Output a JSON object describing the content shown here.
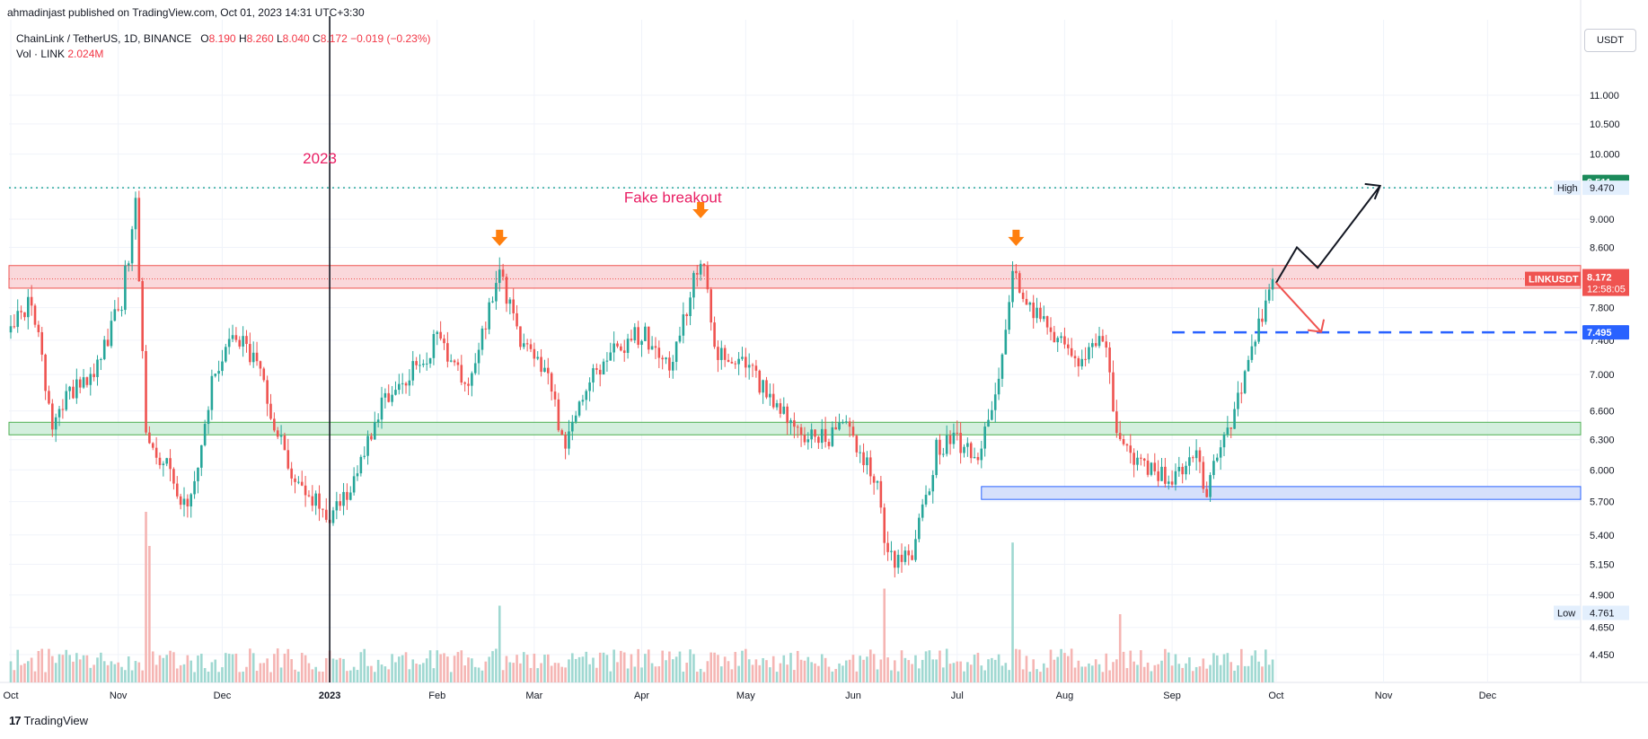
{
  "header": {
    "published": "ahmadinjast published on TradingView.com, Oct 01, 2023 14:31 UTC+3:30",
    "symbol": "ChainLink / TetherUS, 1D, BINANCE",
    "ohlc": [
      {
        "k": "O",
        "v": "8.190"
      },
      {
        "k": "H",
        "v": "8.260"
      },
      {
        "k": "L",
        "v": "8.040"
      },
      {
        "k": "C",
        "v": "8.172"
      }
    ],
    "change": "−0.019 (−0.23%)",
    "volume_label": "Vol · LINK",
    "volume_value": "2.024M"
  },
  "currency_button": "USDT",
  "footer": {
    "brand": "TradingView"
  },
  "colors": {
    "up": "#26a69a",
    "down": "#ef5350",
    "annotation": "#e91e63",
    "arrow_marker": "#ff7f0e",
    "high_line": "#26a69a",
    "blue_line": "#2962ff",
    "resistance_zone": "#f8c8cc",
    "support_zone": "#c8ebd6",
    "demand_zone": "#d6e0fb"
  },
  "chart_data": {
    "type": "candlestick",
    "y_scale": "log",
    "ylim": [
      4.3,
      12.0
    ],
    "y_ticks": [
      4.45,
      4.65,
      4.9,
      5.15,
      5.4,
      5.7,
      6.0,
      6.3,
      6.6,
      7.0,
      7.4,
      7.8,
      8.6,
      9.0,
      9.47,
      10.0,
      10.5,
      11.0
    ],
    "x_tick_labels": [
      {
        "label": "Oct",
        "date": "2022-10-01"
      },
      {
        "label": "Nov",
        "date": "2022-11-01"
      },
      {
        "label": "Dec",
        "date": "2022-12-01"
      },
      {
        "label": "2023",
        "date": "2023-01-01",
        "bold": true
      },
      {
        "label": "Feb",
        "date": "2023-02-01"
      },
      {
        "label": "Mar",
        "date": "2023-03-01"
      },
      {
        "label": "Apr",
        "date": "2023-04-01"
      },
      {
        "label": "May",
        "date": "2023-05-01"
      },
      {
        "label": "Jun",
        "date": "2023-06-01"
      },
      {
        "label": "Jul",
        "date": "2023-07-01"
      },
      {
        "label": "Aug",
        "date": "2023-08-01"
      },
      {
        "label": "Sep",
        "date": "2023-09-01"
      },
      {
        "label": "Oct",
        "date": "2023-10-01"
      },
      {
        "label": "Nov",
        "date": "2023-11-01"
      },
      {
        "label": "Dec",
        "date": "2023-12-01"
      }
    ],
    "anchors": [
      {
        "date": "2022-10-01",
        "close": 7.5
      },
      {
        "date": "2022-10-07",
        "close": 7.9
      },
      {
        "date": "2022-10-13",
        "close": 6.5
      },
      {
        "date": "2022-10-20",
        "close": 6.9
      },
      {
        "date": "2022-10-26",
        "close": 7.1
      },
      {
        "date": "2022-11-02",
        "close": 7.9
      },
      {
        "date": "2022-11-06",
        "close": 9.2
      },
      {
        "date": "2022-11-09",
        "close": 6.3
      },
      {
        "date": "2022-11-14",
        "close": 6.1
      },
      {
        "date": "2022-11-21",
        "close": 5.6
      },
      {
        "date": "2022-11-28",
        "close": 6.9
      },
      {
        "date": "2022-12-05",
        "close": 7.5
      },
      {
        "date": "2022-12-12",
        "close": 7.0
      },
      {
        "date": "2022-12-20",
        "close": 6.0
      },
      {
        "date": "2022-12-28",
        "close": 5.7
      },
      {
        "date": "2023-01-01",
        "close": 5.6
      },
      {
        "date": "2023-01-08",
        "close": 5.9
      },
      {
        "date": "2023-01-15",
        "close": 6.6
      },
      {
        "date": "2023-01-22",
        "close": 6.9
      },
      {
        "date": "2023-02-01",
        "close": 7.4
      },
      {
        "date": "2023-02-10",
        "close": 6.9
      },
      {
        "date": "2023-02-19",
        "close": 8.3
      },
      {
        "date": "2023-02-25",
        "close": 7.4
      },
      {
        "date": "2023-03-05",
        "close": 7.0
      },
      {
        "date": "2023-03-10",
        "close": 6.2
      },
      {
        "date": "2023-03-17",
        "close": 7.0
      },
      {
        "date": "2023-03-25",
        "close": 7.3
      },
      {
        "date": "2023-04-01",
        "close": 7.5
      },
      {
        "date": "2023-04-10",
        "close": 7.1
      },
      {
        "date": "2023-04-18",
        "close": 8.5
      },
      {
        "date": "2023-04-23",
        "close": 7.2
      },
      {
        "date": "2023-05-01",
        "close": 7.1
      },
      {
        "date": "2023-05-10",
        "close": 6.7
      },
      {
        "date": "2023-05-20",
        "close": 6.3
      },
      {
        "date": "2023-05-31",
        "close": 6.4
      },
      {
        "date": "2023-06-08",
        "close": 5.9
      },
      {
        "date": "2023-06-11",
        "close": 5.2
      },
      {
        "date": "2023-06-18",
        "close": 5.2
      },
      {
        "date": "2023-06-25",
        "close": 6.2
      },
      {
        "date": "2023-07-01",
        "close": 6.3
      },
      {
        "date": "2023-07-07",
        "close": 6.1
      },
      {
        "date": "2023-07-12",
        "close": 6.7
      },
      {
        "date": "2023-07-17",
        "close": 8.2
      },
      {
        "date": "2023-07-21",
        "close": 7.9
      },
      {
        "date": "2023-07-27",
        "close": 7.6
      },
      {
        "date": "2023-08-05",
        "close": 7.1
      },
      {
        "date": "2023-08-12",
        "close": 7.5
      },
      {
        "date": "2023-08-17",
        "close": 6.2
      },
      {
        "date": "2023-08-25",
        "close": 6.0
      },
      {
        "date": "2023-09-01",
        "close": 5.9
      },
      {
        "date": "2023-09-07",
        "close": 6.2
      },
      {
        "date": "2023-09-11",
        "close": 5.8
      },
      {
        "date": "2023-09-16",
        "close": 6.3
      },
      {
        "date": "2023-09-22",
        "close": 7.0
      },
      {
        "date": "2023-09-30",
        "close": 8.17
      }
    ],
    "volume_peaks": [
      {
        "date": "2022-11-09",
        "rel": 1.0
      },
      {
        "date": "2022-11-10",
        "rel": 0.8
      },
      {
        "date": "2023-02-19",
        "rel": 0.45
      },
      {
        "date": "2023-06-10",
        "rel": 0.55
      },
      {
        "date": "2023-07-17",
        "rel": 0.82
      },
      {
        "date": "2023-08-17",
        "rel": 0.4
      }
    ],
    "last": {
      "symbol": "LINKUSDT",
      "price": "8.172",
      "countdown": "12:58:05"
    },
    "high": {
      "label": "High",
      "value": "9.470"
    },
    "low": {
      "label": "Low",
      "value": "4.761"
    },
    "target_label": "9.511",
    "blue_line_label": "7.495",
    "zones": {
      "resistance": [
        8.05,
        8.35
      ],
      "support": [
        6.35,
        6.48
      ],
      "demand": {
        "from": "2023-07-08",
        "to": "2023-12-31",
        "range": [
          5.72,
          5.84
        ]
      }
    },
    "annotations": [
      {
        "text": "2023",
        "date": "2023-01-01",
        "price": 9.85
      },
      {
        "text": "Fake breakout",
        "date": "2023-04-10",
        "price": 9.25
      }
    ],
    "markers": [
      {
        "date": "2023-02-19",
        "price": 8.72
      },
      {
        "date": "2023-04-18",
        "price": 9.12
      },
      {
        "date": "2023-07-18",
        "price": 8.72
      }
    ],
    "projection_black": [
      {
        "date": "2023-10-01",
        "price": 8.12
      },
      {
        "date": "2023-10-07",
        "price": 8.6
      },
      {
        "date": "2023-10-13",
        "price": 8.32
      },
      {
        "date": "2023-10-31",
        "price": 9.5
      }
    ],
    "projection_red": [
      {
        "date": "2023-10-01",
        "price": 8.12
      },
      {
        "date": "2023-10-14",
        "price": 7.5
      }
    ],
    "blue_dashed_line": {
      "from": "2023-09-01",
      "price": 7.495
    },
    "high_line": {
      "price": 9.47
    },
    "year_line_date": "2023-01-01"
  }
}
